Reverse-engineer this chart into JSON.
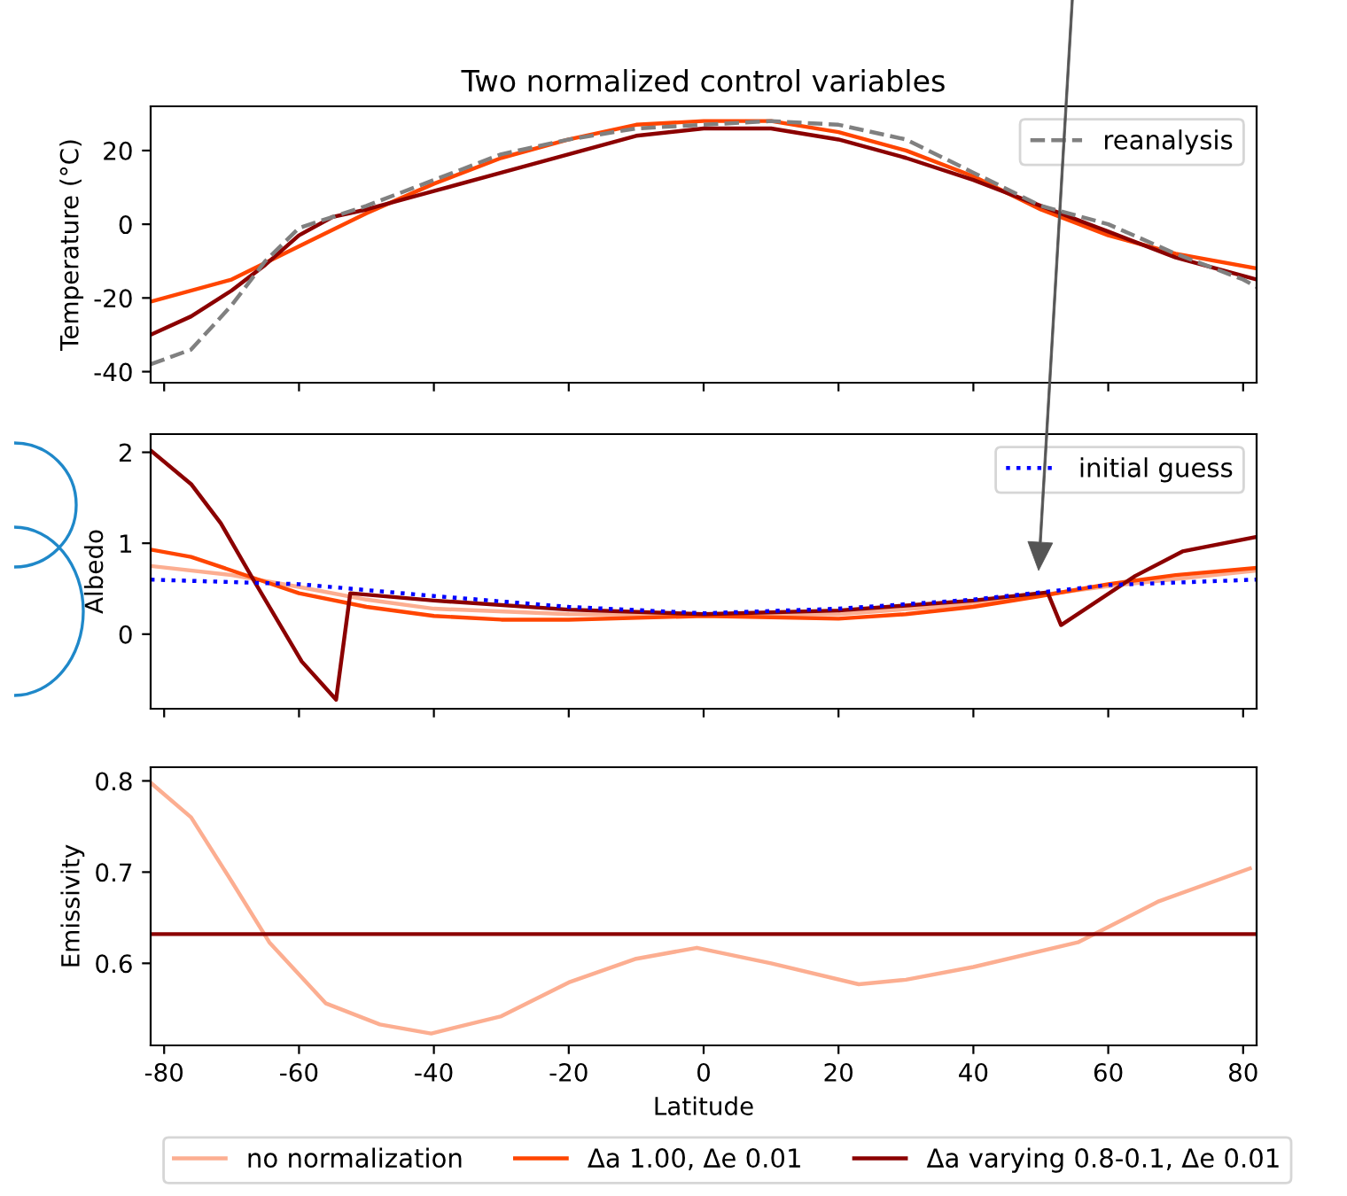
{
  "chart_data": [
    {
      "type": "line",
      "title": "Two normalized control variables",
      "ylabel": "Temperature (°C)",
      "xlim": [
        -82,
        82
      ],
      "xticks": [
        -80,
        -60,
        -40,
        -20,
        0,
        20,
        40,
        60,
        80
      ],
      "ylim": [
        -43,
        32
      ],
      "yticks": [
        -40,
        -20,
        0,
        20
      ],
      "tick_labels": "y",
      "grid": false,
      "legend": "top right",
      "series": [
        {
          "color": "#ff4500",
          "x": [
            -82,
            -70,
            -60,
            -50,
            -40,
            -30,
            -20,
            -10,
            0,
            10,
            20,
            30,
            40,
            50,
            60,
            70,
            82
          ],
          "values": [
            -21,
            -15,
            -6,
            3,
            11,
            18,
            23,
            27,
            28,
            28,
            25,
            20,
            13,
            4,
            -3,
            -8,
            -12
          ]
        },
        {
          "color": "#8b0000",
          "x": [
            -82,
            -76,
            -70,
            -65,
            -60,
            -55,
            -50,
            -40,
            -30,
            -20,
            -10,
            0,
            10,
            20,
            30,
            40,
            50,
            60,
            70,
            80,
            82
          ],
          "values": [
            -30,
            -25,
            -18,
            -11,
            -3,
            2,
            4,
            9,
            14,
            19,
            24,
            26,
            26,
            23,
            18,
            12,
            5,
            -2,
            -9,
            -14,
            -15
          ]
        },
        {
          "name": "reanalysis",
          "color": "#808080",
          "line_style": "dashed",
          "x": [
            -82,
            -76,
            -70,
            -65,
            -60,
            -55,
            -50,
            -40,
            -30,
            -20,
            -10,
            0,
            10,
            20,
            30,
            40,
            50,
            60,
            70,
            80,
            82
          ],
          "values": [
            -38,
            -34,
            -22,
            -10,
            -1,
            2,
            5,
            12,
            19,
            23,
            26,
            27,
            28,
            27,
            23,
            14,
            5,
            0,
            -8,
            -15,
            -17
          ]
        }
      ]
    },
    {
      "type": "line",
      "ylabel": "Albedo",
      "xlim": [
        -82,
        82
      ],
      "xticks": [
        -80,
        -60,
        -40,
        -20,
        0,
        20,
        40,
        60,
        80
      ],
      "ylim": [
        -0.82,
        2.2
      ],
      "yticks": [
        0,
        1,
        2
      ],
      "tick_labels": "y",
      "grid": false,
      "legend": "top right",
      "series": [
        {
          "color": "#fcae91",
          "x": [
            -82,
            -70,
            -60,
            -50,
            -40,
            -20,
            0,
            20,
            40,
            60,
            82
          ],
          "values": [
            0.75,
            0.65,
            0.52,
            0.38,
            0.28,
            0.22,
            0.21,
            0.22,
            0.33,
            0.53,
            0.7
          ]
        },
        {
          "color": "#ff4500",
          "x": [
            -82,
            -76,
            -66,
            -60,
            -50,
            -40,
            -30,
            -20,
            0,
            20,
            30,
            40,
            50,
            60,
            70,
            82
          ],
          "values": [
            0.93,
            0.85,
            0.6,
            0.45,
            0.3,
            0.2,
            0.16,
            0.16,
            0.2,
            0.17,
            0.22,
            0.3,
            0.42,
            0.55,
            0.65,
            0.73
          ]
        },
        {
          "color": "#8b0000",
          "x": [
            -82,
            -76,
            -71.6,
            -66.7,
            -59.6,
            -54.5,
            -52.4,
            -40,
            -20,
            0,
            20,
            40,
            51,
            53,
            64,
            71,
            82
          ],
          "values": [
            2.02,
            1.65,
            1.22,
            0.59,
            -0.3,
            -0.72,
            0.45,
            0.37,
            0.27,
            0.22,
            0.26,
            0.37,
            0.46,
            0.1,
            0.64,
            0.91,
            1.07
          ]
        },
        {
          "name": "initial guess",
          "color": "#0000ff",
          "line_style": "dotted",
          "x": [
            -82,
            -60,
            -40,
            -20,
            0,
            20,
            40,
            50,
            60,
            82
          ],
          "values": [
            0.6,
            0.55,
            0.42,
            0.3,
            0.23,
            0.28,
            0.38,
            0.46,
            0.54,
            0.6
          ]
        }
      ]
    },
    {
      "type": "line",
      "ylabel": "Emissivity",
      "xlabel": "Latitude",
      "xlim": [
        -82,
        82
      ],
      "xticks": [
        -80,
        -60,
        -40,
        -20,
        0,
        20,
        40,
        60,
        80
      ],
      "ylim": [
        0.51,
        0.815
      ],
      "yticks": [
        0.6,
        0.7,
        0.8
      ],
      "grid": false,
      "legend": "bottom",
      "series": [
        {
          "name": "no normalization",
          "color": "#fcae91",
          "x": [
            -82,
            -76,
            -70,
            -64.4,
            -56,
            -48,
            -40.4,
            -30,
            -20,
            -10,
            -1,
            10,
            23,
            30,
            40,
            55.5,
            67.5,
            81
          ],
          "values": [
            0.798,
            0.76,
            0.69,
            0.623,
            0.556,
            0.533,
            0.523,
            0.542,
            0.579,
            0.605,
            0.617,
            0.6,
            0.577,
            0.582,
            0.596,
            0.623,
            0.668,
            0.704
          ]
        },
        {
          "name": "Δa 1.00, Δe 0.01",
          "color": "#ff4500"
        },
        {
          "name": "Δa varying 0.8-0.1, Δe 0.01",
          "color": "#8b0000",
          "x": [
            -82,
            82
          ],
          "values": [
            0.632,
            0.632
          ]
        }
      ]
    }
  ]
}
